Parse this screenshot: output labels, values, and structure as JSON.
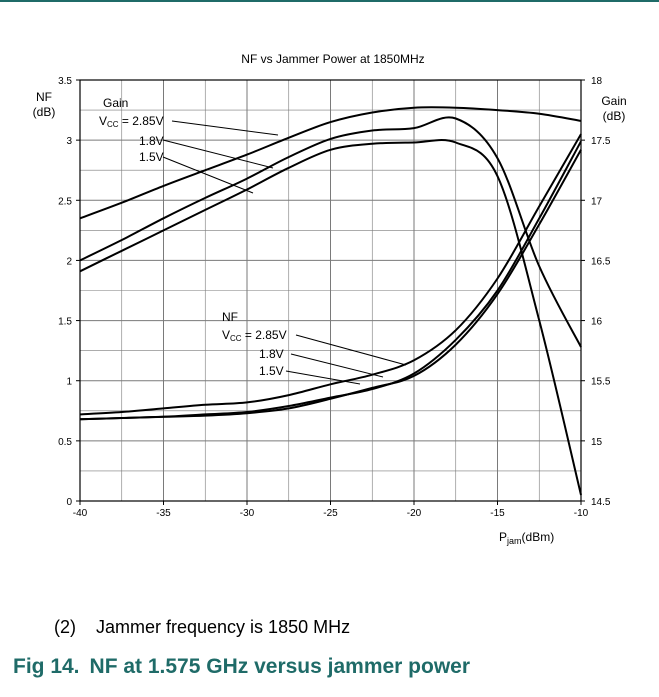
{
  "chart_data": {
    "type": "line",
    "title": "NF vs Jammer Power at 1850MHz",
    "x": [
      -40,
      -37.5,
      -35,
      -32.5,
      -30,
      -27.5,
      -25,
      -22.5,
      -20,
      -17.5,
      -15,
      -12.5,
      -10
    ],
    "xlabel": {
      "main": "P",
      "sub": "jam",
      "unit": "(dBm)"
    },
    "xlim": [
      -40,
      -10
    ],
    "xticks": [
      "-40",
      "-35",
      "-30",
      "-25",
      "-20",
      "-15",
      "-10"
    ],
    "ylabel_left": {
      "line1": "NF",
      "line2": "(dB)"
    },
    "ylim_left": [
      0,
      3.5
    ],
    "yticks_left": [
      "0",
      "0.5",
      "1",
      "1.5",
      "2",
      "2.5",
      "3",
      "3.5"
    ],
    "ylabel_right": {
      "line1": "Gain",
      "line2": "(dB)"
    },
    "ylim_right": [
      14.5,
      18
    ],
    "yticks_right": [
      "14.5",
      "15",
      "15.5",
      "16",
      "16.5",
      "17",
      "17.5",
      "18"
    ],
    "grid": true,
    "gain_series": [
      {
        "name": "Vcc = 2.85V",
        "values": [
          16.85,
          16.98,
          17.12,
          17.25,
          17.38,
          17.52,
          17.65,
          17.73,
          17.77,
          17.77,
          17.75,
          17.72,
          17.66
        ]
      },
      {
        "name": "1.8V",
        "values": [
          16.5,
          16.67,
          16.85,
          17.02,
          17.18,
          17.36,
          17.51,
          17.58,
          17.6,
          17.68,
          17.35,
          16.45,
          15.78
        ]
      },
      {
        "name": "1.5V",
        "values": [
          16.41,
          16.58,
          16.75,
          16.92,
          17.09,
          17.27,
          17.42,
          17.47,
          17.48,
          17.48,
          17.2,
          16.0,
          14.55
        ]
      }
    ],
    "nf_series": [
      {
        "name": "Vcc = 2.85V",
        "values": [
          0.72,
          0.74,
          0.77,
          0.8,
          0.82,
          0.88,
          0.97,
          1.05,
          1.17,
          1.42,
          1.85,
          2.45,
          3.05
        ]
      },
      {
        "name": "1.8V",
        "values": [
          0.68,
          0.69,
          0.7,
          0.72,
          0.74,
          0.79,
          0.86,
          0.93,
          1.06,
          1.34,
          1.75,
          2.35,
          2.99
        ]
      },
      {
        "name": "1.5V",
        "values": [
          0.68,
          0.69,
          0.7,
          0.71,
          0.73,
          0.77,
          0.85,
          0.94,
          1.04,
          1.3,
          1.72,
          2.3,
          2.92
        ]
      }
    ],
    "annotations": {
      "gain_group": {
        "title": "Gain",
        "vcc_main": "V",
        "vcc_sub": "CC",
        "vcc_value": " = 2.85V",
        "v18": "1.8V",
        "v15": "1.5V"
      },
      "nf_group": {
        "title": "NF",
        "vcc_main": "V",
        "vcc_sub": "CC",
        "vcc_value": " = 2.85V",
        "v18": "1.8V",
        "v15": "1.5V"
      }
    }
  },
  "note": {
    "number": "(2)",
    "text": "Jammer frequency is 1850 MHz"
  },
  "caption": {
    "figno": "Fig 14.",
    "text": "NF at 1.575 GHz versus jammer power"
  },
  "colors": {
    "accent": "#1f6b68",
    "curve": "#000000",
    "grid": "#7a7a7a"
  }
}
